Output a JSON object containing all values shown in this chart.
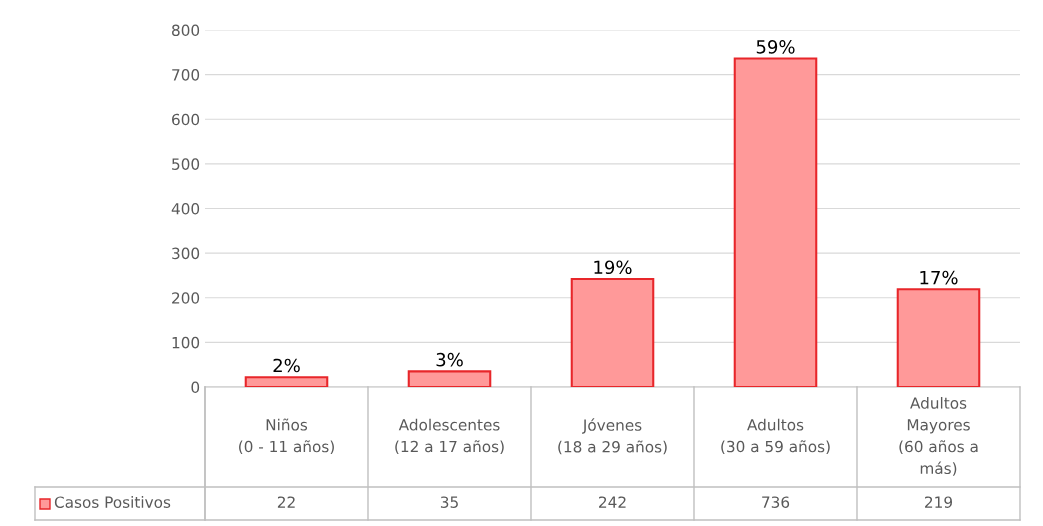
{
  "chart_data": {
    "type": "bar",
    "categories": [
      "Niños\n(0 - 11 años)",
      "Adolescentes\n(12 a 17 años)",
      "Jóvenes\n(18 a 29 años)",
      "Adultos\n(30 a 59 años)",
      "Adultos\nMayores\n(60 años a\nmás)"
    ],
    "series": [
      {
        "name": "Casos Positivos",
        "color": "#ff9999",
        "values": [
          22,
          35,
          242,
          736,
          219
        ]
      }
    ],
    "value_labels": [
      "2%",
      "3%",
      "19%",
      "59%",
      "17%"
    ],
    "data_labels": true,
    "ylim": [
      0,
      800
    ],
    "yticks": [
      0,
      100,
      200,
      300,
      400,
      500,
      600,
      700,
      800
    ],
    "grid": "y",
    "legend": "bottom"
  }
}
